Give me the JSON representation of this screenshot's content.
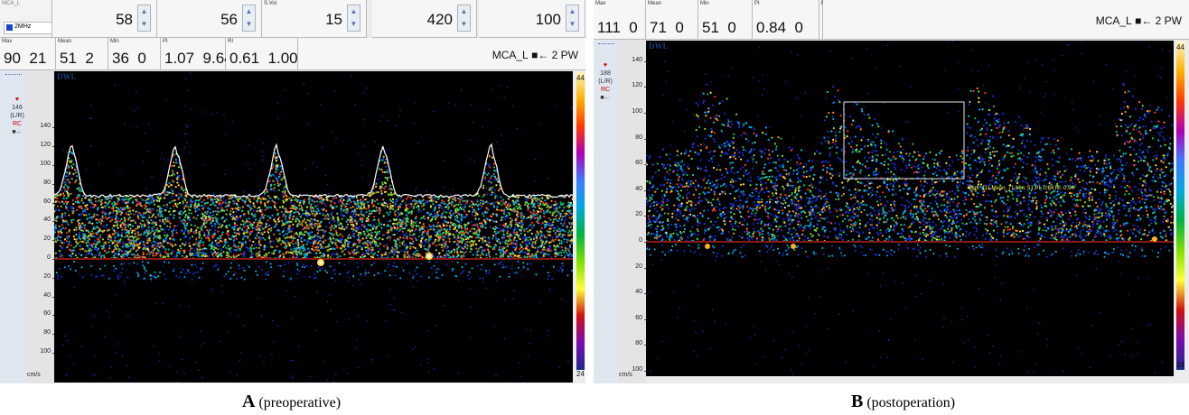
{
  "panelA": {
    "top_row": {
      "probe_name": "MCA_L",
      "probe_freq": "2MHz",
      "controls": [
        {
          "value": "58"
        },
        {
          "value": "56"
        },
        {
          "label": "S.Vol",
          "value": "15"
        },
        {
          "value": "420"
        },
        {
          "value": "100"
        }
      ]
    },
    "measurements": [
      {
        "label": "Max",
        "values": [
          "90",
          "21"
        ]
      },
      {
        "label": "Mean",
        "values": [
          "51",
          "2"
        ]
      },
      {
        "label": "Min",
        "values": [
          "36",
          "0"
        ]
      },
      {
        "label": "PI",
        "values": [
          "1.07",
          "9.64"
        ]
      },
      {
        "label": "RI",
        "values": [
          "0.61",
          "1.00"
        ]
      }
    ],
    "vessel_label": "MCA_L",
    "direction": "■← 2 PW",
    "logo": "DWL",
    "side": {
      "depth": "146",
      "side": "(L/R)",
      "rc": "RC",
      "arrow": "■←"
    },
    "unit": "cm/s",
    "colorbar": {
      "top": "44",
      "bottom": "24"
    },
    "ticks": [
      "140",
      "120",
      "100",
      "80",
      "60",
      "40",
      "20",
      "0",
      "20",
      "40",
      "60",
      "80",
      "100"
    ],
    "caption": {
      "letter": "A",
      "text": "(preoperative)"
    }
  },
  "panelB": {
    "measurements": [
      {
        "label": "Max",
        "values": [
          "111",
          "0"
        ]
      },
      {
        "label": "Mean",
        "values": [
          "71",
          "0"
        ]
      },
      {
        "label": "Min",
        "values": [
          "51",
          "0"
        ]
      },
      {
        "label": "PI",
        "values": [
          "0.84",
          "0"
        ]
      },
      {
        "label": "RI",
        "values": [
          "0.54",
          "0"
        ]
      }
    ],
    "vessel_label": "MCA_L",
    "direction": "■← 2 PW",
    "logo": "DWL",
    "side": {
      "depth": "188",
      "side": "(L/R)",
      "rc": "RC",
      "arrow": "■←"
    },
    "unit": "cm/s",
    "colorbar": {
      "top": "44",
      "bottom": "24"
    },
    "ticks": [
      "140",
      "120",
      "100",
      "80",
      "60",
      "40",
      "20",
      "0",
      "20",
      "40",
      "60",
      "80",
      "100"
    ],
    "annotation": "Max: 111 Mean: 71 Min: 51 PI: 0.84 RI: 0.54",
    "caption": {
      "letter": "B",
      "text": "(postoperation)"
    }
  },
  "colors": {
    "spectrum_bg": "#000000",
    "envelope": "#ffffff",
    "baseline": "#8a1a10",
    "annotation_text": "#ffff55"
  }
}
